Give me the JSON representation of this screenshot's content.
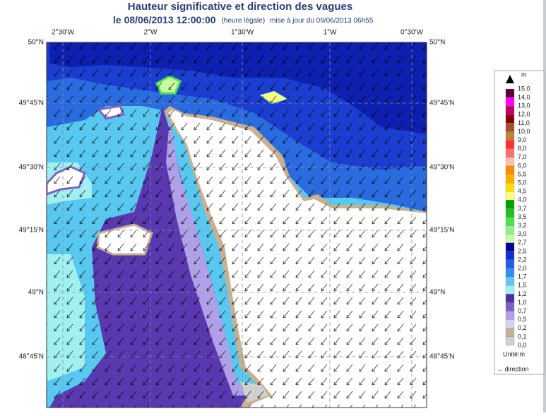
{
  "header": {
    "title": "Hauteur significative et direction des vagues",
    "date": "le 08/06/2013 12:00:00",
    "time_note": "(heure légale)",
    "update": "mise à jour du 09/06/2013 06h55"
  },
  "map": {
    "lon_labels": [
      "2°30'W",
      "2°W",
      "1°30'W",
      "1°W",
      "0°30'W"
    ],
    "lat_labels": [
      "50°N",
      "49°45'N",
      "49°30'N",
      "49°15'N",
      "49°N",
      "48°45'N"
    ]
  },
  "legend": {
    "top_symbol": "m",
    "labels": [
      "15,0",
      "14,0",
      "13,0",
      "12,0",
      "11,0",
      "10,0",
      "9,0",
      "8,0",
      "7,0",
      "6,0",
      "5,5",
      "5,0",
      "4,5",
      "4,0",
      "3,7",
      "3,5",
      "3,2",
      "3,0",
      "2,7",
      "2,5",
      "2,2",
      "2,0",
      "1,7",
      "1,5",
      "1,2",
      "1,0",
      "0,7",
      "0,5",
      "0,2",
      "0,1",
      "0,0"
    ],
    "colors": [
      "#5a0040",
      "#ff00ff",
      "#c00060",
      "#8b0000",
      "#a0522d",
      "#c08040",
      "#ff3030",
      "#ff7070",
      "#ffc0b0",
      "#ff8c00",
      "#ffb000",
      "#ffe000",
      "#ffff80",
      "#00a000",
      "#20c020",
      "#50e050",
      "#90f090",
      "#c8ffa0",
      "#0000a0",
      "#1030d0",
      "#2060e0",
      "#3090f0",
      "#60c8f0",
      "#a0f0f0",
      "#5030a0",
      "#8060c8",
      "#b0a0e8",
      "#d8d0f0",
      "#c8b090",
      "#d0d0d0"
    ],
    "unit": "Unité:m",
    "direction": "→ direction"
  }
}
